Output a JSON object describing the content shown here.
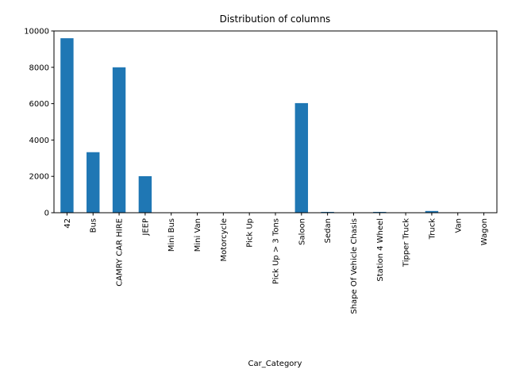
{
  "chart_data": {
    "type": "bar",
    "title": "Distribution of columns",
    "xlabel": "Car_Category",
    "ylabel": "",
    "categories": [
      "42",
      "Bus",
      "CAMRY CAR HIRE",
      "JEEP",
      "Mini Bus",
      "Mini Van",
      "Motorcycle",
      "Pick Up",
      "Pick Up > 3 Tons",
      "Saloon",
      "Sedan",
      "Shape Of Vehicle Chasis",
      "Station 4 Wheel",
      "Tipper Truck",
      "Truck",
      "Van",
      "Wagon"
    ],
    "values": [
      9600,
      3330,
      8000,
      2010,
      3,
      3,
      2,
      3,
      3,
      6030,
      45,
      2,
      45,
      3,
      95,
      3,
      3
    ],
    "ylim": [
      0,
      10000
    ],
    "yticks": [
      0,
      2000,
      4000,
      6000,
      8000,
      10000
    ],
    "grid": false,
    "legend": "none",
    "bar_color": "#1f77b4"
  }
}
